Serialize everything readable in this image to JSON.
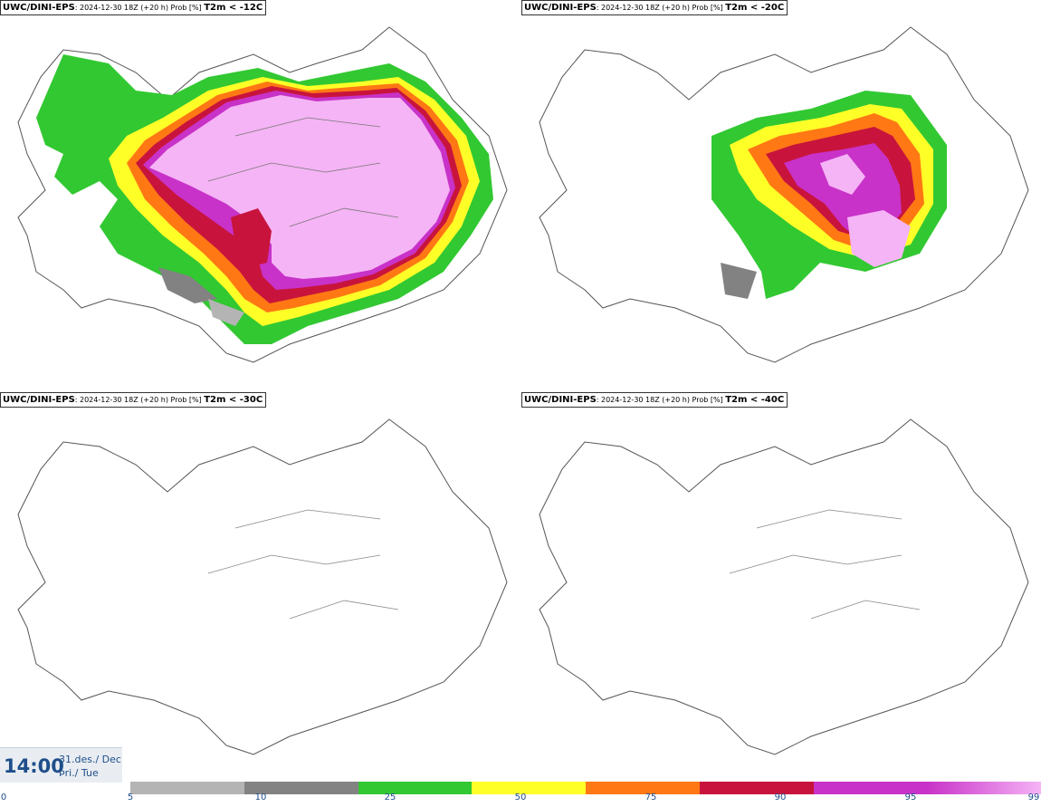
{
  "panels": [
    {
      "model": "UWC/DINI-EPS",
      "meta": ": 2024-12-30 18Z (+20 h) Prob [%] ",
      "variable": "T2m < -12C"
    },
    {
      "model": "UWC/DINI-EPS",
      "meta": ": 2024-12-30 18Z (+20 h) Prob [%] ",
      "variable": "T2m < -20C"
    },
    {
      "model": "UWC/DINI-EPS",
      "meta": ": 2024-12-30 18Z (+20 h) Prob [%] ",
      "variable": "T2m < -30C"
    },
    {
      "model": "UWC/DINI-EPS",
      "meta": ": 2024-12-30 18Z (+20 h) Prob [%] ",
      "variable": "T2m < -40C"
    }
  ],
  "valid_time": {
    "time": "14:00",
    "date": "31.des./ Dec",
    "weekday": "Þri./ Tue"
  },
  "colorscale": {
    "ticks": [
      "0",
      "5",
      "10",
      "25",
      "50",
      "75",
      "90",
      "95",
      "99"
    ],
    "colors": [
      "#b4b4b4",
      "#828282",
      "#32c832",
      "#ffff28",
      "#ff7814",
      "#c8143c",
      "#c832c8",
      "#f5b4f5"
    ]
  },
  "legend_colors": {
    "green": "#32c832",
    "yellow": "#ffff28",
    "orange": "#ff7814",
    "red": "#c8143c",
    "magenta": "#c832c8",
    "pink": "#f5b4f5",
    "grey": "#828282"
  }
}
